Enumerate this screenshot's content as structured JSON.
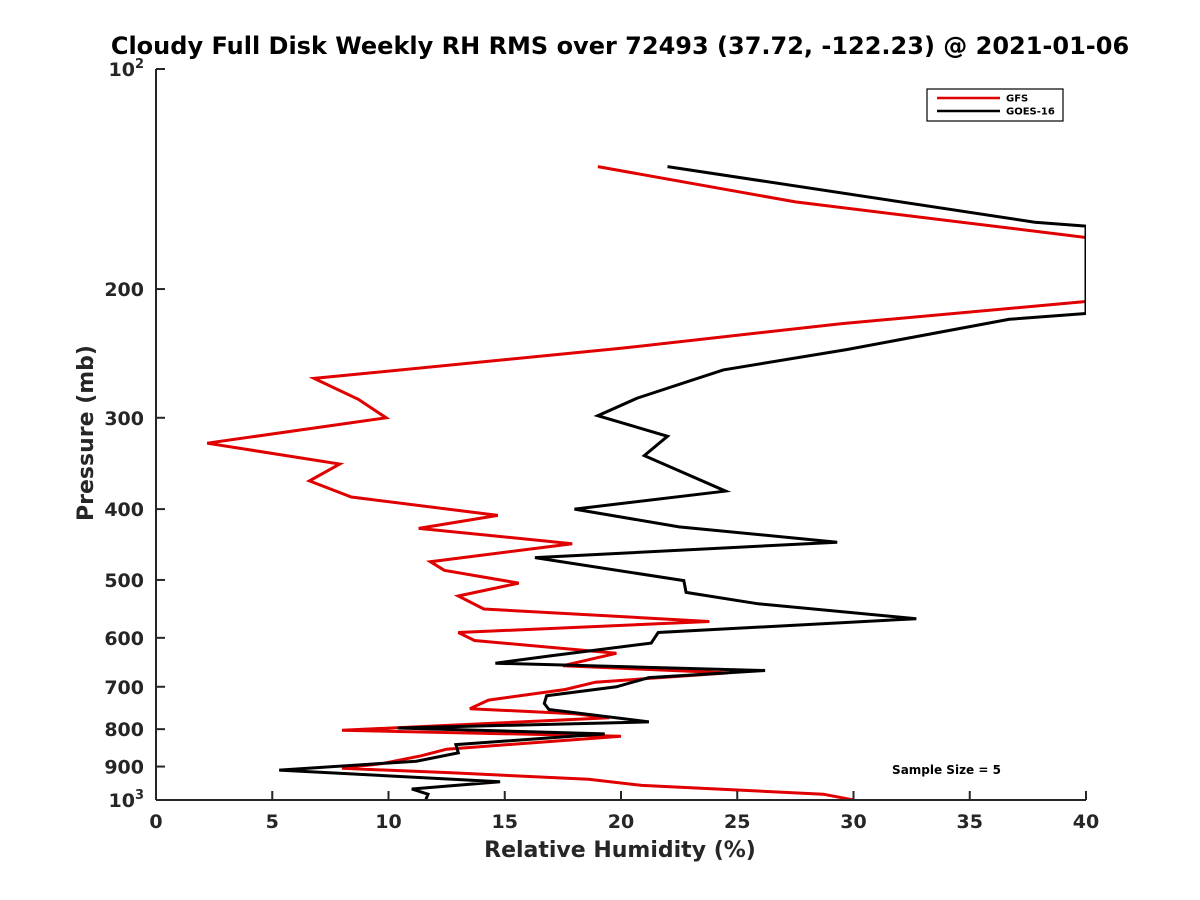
{
  "chart_data": {
    "type": "line",
    "title": "Cloudy Full Disk Weekly RH RMS over 72493 (37.72, -122.23) @ 2021-01-06",
    "xlabel": "Relative Humidity (%)",
    "ylabel": "Pressure (mb)",
    "xlim": [
      0,
      40
    ],
    "ylim": [
      100,
      1000
    ],
    "yscale": "log",
    "yreversed": true,
    "grid": false,
    "legend_position": "top-right",
    "x_ticks": [
      {
        "value": 0,
        "label": "0"
      },
      {
        "value": 5,
        "label": "5"
      },
      {
        "value": 10,
        "label": "10"
      },
      {
        "value": 15,
        "label": "15"
      },
      {
        "value": 20,
        "label": "20"
      },
      {
        "value": 25,
        "label": "25"
      },
      {
        "value": 30,
        "label": "30"
      },
      {
        "value": 35,
        "label": "35"
      },
      {
        "value": 40,
        "label": "40"
      }
    ],
    "y_ticks": [
      {
        "value": 100,
        "label": "10",
        "sup": "2"
      },
      {
        "value": 200,
        "label": "200"
      },
      {
        "value": 300,
        "label": "300"
      },
      {
        "value": 400,
        "label": "400"
      },
      {
        "value": 500,
        "label": "500"
      },
      {
        "value": 600,
        "label": "600"
      },
      {
        "value": 700,
        "label": "700"
      },
      {
        "value": 800,
        "label": "800"
      },
      {
        "value": 900,
        "label": "900"
      },
      {
        "value": 1000,
        "label": "10",
        "sup": "3"
      }
    ],
    "series": [
      {
        "name": "GFS",
        "color": "#e00000",
        "points": [
          [
            19.0,
            136
          ],
          [
            27.5,
            152
          ],
          [
            40.0,
            170
          ],
          [
            40.0,
            208
          ],
          [
            29.5,
            223
          ],
          [
            20.0,
            241
          ],
          [
            6.8,
            265
          ],
          [
            8.7,
            283
          ],
          [
            9.9,
            300
          ],
          [
            2.2,
            325
          ],
          [
            7.9,
            347
          ],
          [
            6.6,
            366
          ],
          [
            8.4,
            385
          ],
          [
            14.7,
            408
          ],
          [
            11.3,
            425
          ],
          [
            17.9,
            446
          ],
          [
            11.8,
            472
          ],
          [
            12.4,
            485
          ],
          [
            15.6,
            505
          ],
          [
            13.0,
            526
          ],
          [
            14.1,
            548
          ],
          [
            23.8,
            570
          ],
          [
            13.0,
            590
          ],
          [
            13.7,
            605
          ],
          [
            19.8,
            630
          ],
          [
            17.5,
            655
          ],
          [
            24.6,
            670
          ],
          [
            18.9,
            690
          ],
          [
            17.6,
            706
          ],
          [
            14.3,
            730
          ],
          [
            13.5,
            750
          ],
          [
            18.0,
            762
          ],
          [
            19.5,
            772
          ],
          [
            8.0,
            803
          ],
          [
            20.0,
            818
          ],
          [
            12.5,
            852
          ],
          [
            11.4,
            870
          ],
          [
            9.7,
            892
          ],
          [
            8.0,
            905
          ],
          [
            12.7,
            918
          ],
          [
            18.6,
            937
          ],
          [
            20.9,
            955
          ],
          [
            28.7,
            982
          ],
          [
            30.0,
            1000
          ]
        ]
      },
      {
        "name": "GOES-16",
        "color": "#000000",
        "points": [
          [
            22.0,
            136
          ],
          [
            37.8,
            162
          ],
          [
            40.0,
            164
          ],
          [
            40.0,
            216
          ],
          [
            36.7,
            220
          ],
          [
            29.7,
            242
          ],
          [
            24.4,
            258
          ],
          [
            20.7,
            282
          ],
          [
            19.0,
            298
          ],
          [
            22.0,
            318
          ],
          [
            21.0,
            338
          ],
          [
            24.5,
            378
          ],
          [
            18.0,
            400
          ],
          [
            22.5,
            423
          ],
          [
            29.3,
            444
          ],
          [
            16.3,
            466
          ],
          [
            22.7,
            501
          ],
          [
            22.8,
            520
          ],
          [
            25.9,
            539
          ],
          [
            32.7,
            565
          ],
          [
            21.6,
            590
          ],
          [
            21.3,
            610
          ],
          [
            17.0,
            635
          ],
          [
            14.6,
            650
          ],
          [
            26.2,
            665
          ],
          [
            21.2,
            680
          ],
          [
            19.8,
            700
          ],
          [
            16.8,
            720
          ],
          [
            16.7,
            738
          ],
          [
            16.9,
            752
          ],
          [
            21.2,
            782
          ],
          [
            10.4,
            797
          ],
          [
            19.3,
            812
          ],
          [
            12.9,
            840
          ],
          [
            13.0,
            862
          ],
          [
            11.2,
            885
          ],
          [
            5.3,
            910
          ],
          [
            14.8,
            944
          ],
          [
            11.0,
            966
          ],
          [
            11.7,
            982
          ],
          [
            11.6,
            1000
          ]
        ]
      }
    ],
    "annotations": [
      {
        "text": "Sample Size = 5",
        "x": 34,
        "y": 910
      }
    ]
  }
}
